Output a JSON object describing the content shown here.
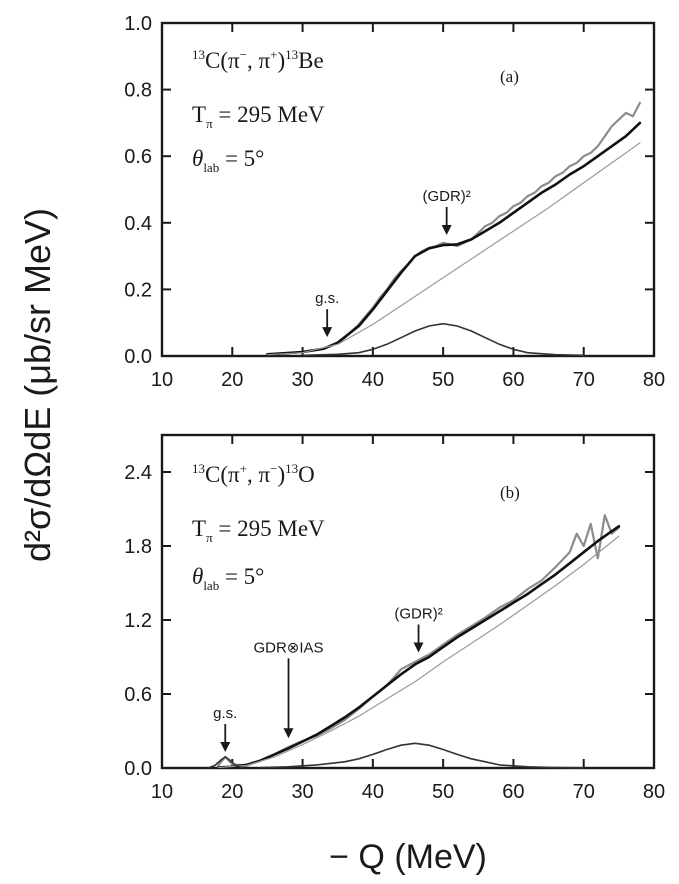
{
  "figure": {
    "ylabel": "d²σ/dΩdE (μb/sr MeV)",
    "xlabel": "− Q   (MeV)"
  },
  "chart_data": [
    {
      "type": "line",
      "panel": "(a)",
      "reaction": {
        "mass_in": "13",
        "lhs": "C(π",
        "sup1": "−",
        "mid": ", π",
        "sup2": "+",
        "rhs": ")",
        "mass_out": "13",
        "product": "Be"
      },
      "energy": {
        "symbol": "T",
        "sub": "π",
        "value": " = 295 MeV"
      },
      "angle": {
        "symbol": "θ",
        "sub": "lab",
        "value": " = 5°"
      },
      "xlim": [
        10,
        80
      ],
      "ylim": [
        0,
        1.0
      ],
      "xticks": [
        "10",
        "20",
        "30",
        "40",
        "50",
        "60",
        "70",
        "80"
      ],
      "yticks": [
        "0.0",
        "0.2",
        "0.4",
        "0.6",
        "0.8",
        "1.0"
      ],
      "annotations": [
        {
          "label": "g.s.",
          "x": 33.5
        },
        {
          "label": "(GDR)²",
          "x": 50.5
        }
      ],
      "series": [
        {
          "role": "data",
          "x": [
            25,
            27,
            29,
            30,
            31,
            32,
            33,
            34,
            35,
            36,
            37,
            38,
            39,
            40,
            41,
            42,
            43,
            44,
            45,
            46,
            47,
            48,
            49,
            50,
            51,
            52,
            53,
            54,
            55,
            56,
            57,
            58,
            59,
            60,
            61,
            62,
            63,
            64,
            65,
            66,
            67,
            68,
            69,
            70,
            71,
            72,
            73,
            74,
            75,
            76,
            77,
            78
          ],
          "y": [
            0.005,
            0.007,
            0.01,
            0.012,
            0.015,
            0.018,
            0.022,
            0.03,
            0.04,
            0.055,
            0.075,
            0.095,
            0.12,
            0.145,
            0.175,
            0.2,
            0.23,
            0.255,
            0.275,
            0.3,
            0.315,
            0.325,
            0.33,
            0.34,
            0.335,
            0.33,
            0.34,
            0.35,
            0.37,
            0.39,
            0.4,
            0.42,
            0.43,
            0.45,
            0.46,
            0.48,
            0.49,
            0.51,
            0.52,
            0.54,
            0.55,
            0.57,
            0.58,
            0.6,
            0.61,
            0.63,
            0.66,
            0.69,
            0.71,
            0.73,
            0.72,
            0.76
          ]
        },
        {
          "role": "total fit",
          "x": [
            25,
            30,
            33,
            35,
            38,
            40,
            42,
            44,
            46,
            48,
            50,
            52,
            54,
            56,
            58,
            60,
            62,
            64,
            66,
            68,
            70,
            72,
            74,
            76,
            78
          ],
          "y": [
            0.005,
            0.012,
            0.022,
            0.04,
            0.09,
            0.14,
            0.195,
            0.25,
            0.3,
            0.323,
            0.333,
            0.335,
            0.35,
            0.375,
            0.4,
            0.43,
            0.46,
            0.49,
            0.515,
            0.545,
            0.57,
            0.6,
            0.63,
            0.66,
            0.7
          ]
        },
        {
          "role": "background",
          "x": [
            25,
            30,
            35,
            40,
            45,
            50,
            55,
            60,
            65,
            70,
            75,
            78
          ],
          "y": [
            0.004,
            0.01,
            0.035,
            0.095,
            0.165,
            0.235,
            0.305,
            0.375,
            0.445,
            0.52,
            0.595,
            0.64
          ]
        },
        {
          "role": "(GDR)² peak",
          "x": [
            30,
            35,
            38,
            40,
            42,
            44,
            46,
            48,
            50,
            52,
            54,
            56,
            58,
            60,
            62,
            66,
            70
          ],
          "y": [
            0.002,
            0.005,
            0.01,
            0.02,
            0.035,
            0.055,
            0.075,
            0.09,
            0.097,
            0.09,
            0.075,
            0.055,
            0.035,
            0.02,
            0.01,
            0.004,
            0.002
          ]
        }
      ]
    },
    {
      "type": "line",
      "panel": "(b)",
      "reaction": {
        "mass_in": "13",
        "lhs": "C(π",
        "sup1": "+",
        "mid": ", π",
        "sup2": "−",
        "rhs": ")",
        "mass_out": "13",
        "product": "O"
      },
      "energy": {
        "symbol": "T",
        "sub": "π",
        "value": " = 295 MeV"
      },
      "angle": {
        "symbol": "θ",
        "sub": "lab",
        "value": " = 5°"
      },
      "xlim": [
        10,
        80
      ],
      "ylim": [
        0,
        2.7
      ],
      "xticks": [
        "10",
        "20",
        "30",
        "40",
        "50",
        "60",
        "70",
        "80"
      ],
      "yticks": [
        "0.0",
        "0.6",
        "1.2",
        "1.8",
        "2.4"
      ],
      "annotations": [
        {
          "label": "g.s.",
          "x": 19
        },
        {
          "label": "GDR⊗IAS",
          "x": 28
        },
        {
          "label": "(GDR)²",
          "x": 46.5
        }
      ],
      "series": [
        {
          "role": "data",
          "x": [
            18,
            19,
            20,
            22,
            24,
            26,
            28,
            30,
            32,
            34,
            36,
            38,
            40,
            42,
            44,
            46,
            48,
            50,
            52,
            54,
            56,
            58,
            60,
            62,
            64,
            66,
            68,
            69,
            70,
            71,
            72,
            73,
            74,
            75
          ],
          "y": [
            0.02,
            0.09,
            0.03,
            0.02,
            0.06,
            0.11,
            0.17,
            0.22,
            0.26,
            0.32,
            0.39,
            0.48,
            0.58,
            0.67,
            0.8,
            0.86,
            0.92,
            1.0,
            1.08,
            1.15,
            1.22,
            1.3,
            1.36,
            1.45,
            1.52,
            1.63,
            1.75,
            1.9,
            1.8,
            1.98,
            1.7,
            2.05,
            1.9,
            1.95
          ]
        },
        {
          "role": "total fit",
          "x": [
            18,
            20,
            22,
            24,
            26,
            28,
            30,
            32,
            34,
            36,
            38,
            40,
            42,
            44,
            46,
            48,
            50,
            52,
            54,
            56,
            58,
            60,
            62,
            64,
            66,
            68,
            70,
            72,
            74,
            75
          ],
          "y": [
            0.005,
            0.01,
            0.025,
            0.06,
            0.11,
            0.16,
            0.215,
            0.27,
            0.34,
            0.41,
            0.49,
            0.58,
            0.67,
            0.76,
            0.84,
            0.9,
            0.98,
            1.06,
            1.13,
            1.2,
            1.27,
            1.34,
            1.41,
            1.49,
            1.57,
            1.66,
            1.75,
            1.84,
            1.92,
            1.96
          ]
        },
        {
          "role": "background",
          "x": [
            18,
            22,
            26,
            30,
            34,
            38,
            42,
            46,
            50,
            54,
            58,
            62,
            66,
            70,
            75
          ],
          "y": [
            0.004,
            0.02,
            0.09,
            0.19,
            0.3,
            0.42,
            0.56,
            0.7,
            0.86,
            1.01,
            1.16,
            1.32,
            1.48,
            1.65,
            1.88
          ]
        },
        {
          "role": "(GDR)² peak",
          "x": [
            24,
            28,
            32,
            36,
            38,
            40,
            42,
            44,
            46,
            48,
            50,
            52,
            54,
            56,
            58,
            62,
            66,
            70
          ],
          "y": [
            0.003,
            0.01,
            0.025,
            0.05,
            0.075,
            0.11,
            0.15,
            0.185,
            0.2,
            0.185,
            0.15,
            0.11,
            0.075,
            0.05,
            0.025,
            0.01,
            0.004,
            0.002
          ]
        },
        {
          "role": "g.s. peak",
          "x": [
            16.5,
            17.5,
            18.5,
            19,
            19.5,
            20.5,
            21.5
          ],
          "y": [
            0.0,
            0.02,
            0.07,
            0.09,
            0.07,
            0.02,
            0.0
          ]
        }
      ]
    }
  ]
}
